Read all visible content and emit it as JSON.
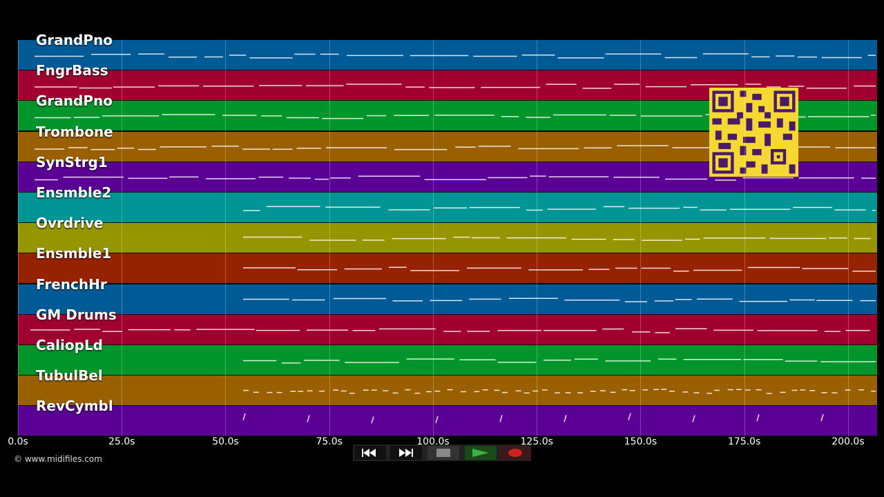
{
  "tracks": [
    {
      "name": "GrandPno",
      "color": "#005a95"
    },
    {
      "name": "FngrBass",
      "color": "#a00030"
    },
    {
      "name": "GrandPno",
      "color": "#00952a"
    },
    {
      "name": "Trombone",
      "color": "#9a6000"
    },
    {
      "name": "SynStrg1",
      "color": "#5a0095"
    },
    {
      "name": "Ensmble2",
      "color": "#009595"
    },
    {
      "name": "Ovrdrive",
      "color": "#959500"
    },
    {
      "name": "Ensmble1",
      "color": "#952200"
    },
    {
      "name": "FrenchHr",
      "color": "#005a95"
    },
    {
      "name": "GM Drums",
      "color": "#a00030"
    },
    {
      "name": "CaliopLd",
      "color": "#00952a"
    },
    {
      "name": "TubulBel",
      "color": "#9a6000"
    },
    {
      "name": "RevCymbl",
      "color": "#5a0095"
    }
  ],
  "ruler": {
    "ticks": [
      "0.0s",
      "25.0s",
      "50.0s",
      "75.0s",
      "100.0s",
      "125.0s",
      "150.0s",
      "175.0s",
      "200.0s"
    ],
    "max_seconds": 207
  },
  "copyright": "© www.midifiles.com",
  "transport": {
    "rewind": "rewind-icon",
    "fast_forward": "fast-forward-icon",
    "stop": "stop-icon",
    "play": "play-icon",
    "record": "record-icon"
  }
}
